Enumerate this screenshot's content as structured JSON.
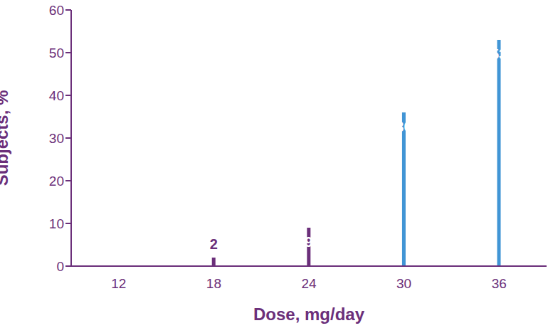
{
  "chart_data": {
    "type": "bar",
    "x_label": "Dose, mg/day",
    "y_label": "Subjects, %",
    "categories": [
      "12",
      "18",
      "24",
      "30",
      "36"
    ],
    "values": [
      0,
      2,
      9,
      36,
      53
    ],
    "colors": [
      "#6b2f7a",
      "#6b2f7a",
      "#6b2f7a",
      "#4195d5",
      "#4195d5"
    ],
    "ylim": [
      0,
      60
    ],
    "yticks": [
      0,
      10,
      20,
      30,
      40,
      50,
      60
    ],
    "grid": false,
    "data_labels": true
  }
}
